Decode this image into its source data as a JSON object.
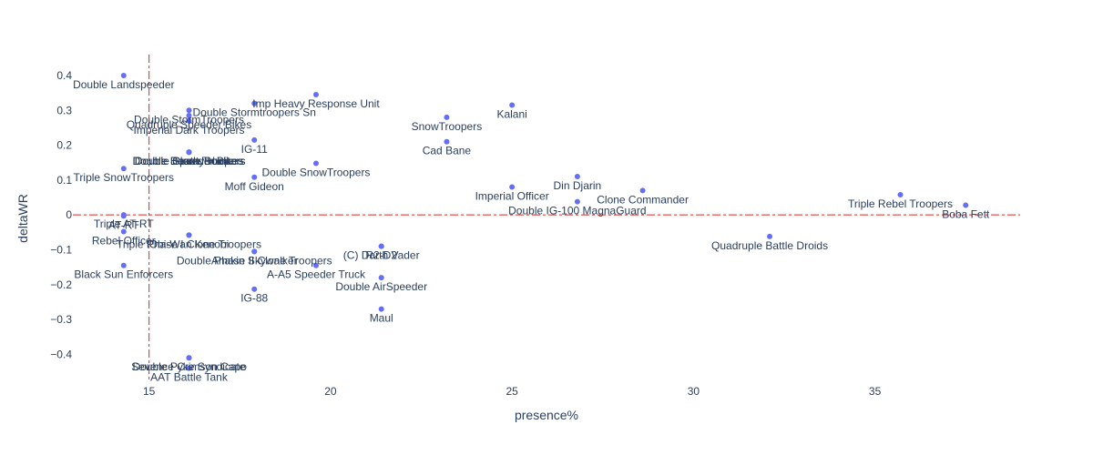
{
  "chart_data": {
    "type": "scatter",
    "xlabel": "presence%",
    "ylabel": "deltaWR",
    "xlim": [
      12.9,
      39.0
    ],
    "ylim": [
      -0.48,
      0.46
    ],
    "xticks": [
      15,
      20,
      25,
      30,
      35
    ],
    "yticks": [
      0.4,
      0.3,
      0.2,
      0.1,
      0,
      -0.1,
      -0.2,
      -0.3,
      -0.4
    ],
    "ytick_labels": [
      "0.4",
      "0.3",
      "0.2",
      "0.1",
      "0",
      "−0.1",
      "−0.2",
      "−0.3",
      "−0.4"
    ],
    "ref_x": 15,
    "ref_y": 0,
    "marker_color": "#636efa",
    "ref_line_color": "#d62728",
    "grid": false,
    "points": [
      {
        "x": 14.3,
        "y": 0.4,
        "label": "Double Landspeeder"
      },
      {
        "x": 17.9,
        "y": 0.32,
        "label": "Double Stormtroopers Sn"
      },
      {
        "x": 19.6,
        "y": 0.345,
        "label": "Imp Heavy Response Unit"
      },
      {
        "x": 25.0,
        "y": 0.315,
        "label": "Kalani"
      },
      {
        "x": 16.1,
        "y": 0.3,
        "label": "Double StormTroopers"
      },
      {
        "x": 16.1,
        "y": 0.285,
        "label": "Quadruple Speeder Bikes"
      },
      {
        "x": 16.1,
        "y": 0.27,
        "label": "Imperial Dark Troopers"
      },
      {
        "x": 23.2,
        "y": 0.28,
        "label": "SnowTroopers"
      },
      {
        "x": 17.9,
        "y": 0.215,
        "label": "IG-11"
      },
      {
        "x": 23.2,
        "y": 0.21,
        "label": "Cad Bane"
      },
      {
        "x": 16.1,
        "y": 0.18,
        "label": "Double Bounty Hunters"
      },
      {
        "x": 16.1,
        "y": 0.18,
        "label": "Double Speeder Bikes"
      },
      {
        "x": 16.1,
        "y": 0.18,
        "label": "Double Death Troopers"
      },
      {
        "x": 16.1,
        "y": 0.18,
        "label": "Double Clone Soldiers"
      },
      {
        "x": 19.6,
        "y": 0.148,
        "label": "Double SnowTroopers"
      },
      {
        "x": 14.3,
        "y": 0.133,
        "label": "Triple SnowTroopers"
      },
      {
        "x": 17.9,
        "y": 0.108,
        "label": "Moff Gideon"
      },
      {
        "x": 26.8,
        "y": 0.11,
        "label": "Din Djarin"
      },
      {
        "x": 25.0,
        "y": 0.08,
        "label": "Imperial Officer"
      },
      {
        "x": 28.6,
        "y": 0.07,
        "label": "Clone Commander"
      },
      {
        "x": 35.7,
        "y": 0.058,
        "label": "Triple Rebel Troopers"
      },
      {
        "x": 26.8,
        "y": 0.038,
        "label": "Double IG-100 MagnaGuard"
      },
      {
        "x": 37.5,
        "y": 0.028,
        "label": "Boba Fett"
      },
      {
        "x": 14.3,
        "y": 0.0,
        "label": "Triple AT-RT"
      },
      {
        "x": 14.3,
        "y": -0.003,
        "label": "AT-RT"
      },
      {
        "x": 14.3,
        "y": -0.048,
        "label": "Rebel Officer"
      },
      {
        "x": 16.1,
        "y": -0.058,
        "label": "Triple Phase I Clone Troopers"
      },
      {
        "x": 16.1,
        "y": -0.058,
        "label": "Obi-Wan Kenobi"
      },
      {
        "x": 32.1,
        "y": -0.062,
        "label": "Quadruple Battle Droids"
      },
      {
        "x": 21.4,
        "y": -0.09,
        "label": "(C) Darth Vader"
      },
      {
        "x": 21.4,
        "y": -0.09,
        "label": "R2-D2"
      },
      {
        "x": 17.9,
        "y": -0.105,
        "label": "Double Phase II Clone Troopers"
      },
      {
        "x": 17.9,
        "y": -0.105,
        "label": "Anakin Skywalker"
      },
      {
        "x": 14.3,
        "y": -0.145,
        "label": "Black Sun Enforcers"
      },
      {
        "x": 19.6,
        "y": -0.145,
        "label": "A-A5 Speeder Truck"
      },
      {
        "x": 21.4,
        "y": -0.18,
        "label": "Double AirSpeeder"
      },
      {
        "x": 17.9,
        "y": -0.213,
        "label": "IG-88"
      },
      {
        "x": 21.4,
        "y": -0.27,
        "label": "Maul"
      },
      {
        "x": 16.1,
        "y": -0.41,
        "label": "Double Pyke Syndicate"
      },
      {
        "x": 16.1,
        "y": -0.41,
        "label": "Sevence Crimson Capo"
      },
      {
        "x": 16.1,
        "y": -0.44,
        "label": "AAT Battle Tank"
      }
    ]
  }
}
